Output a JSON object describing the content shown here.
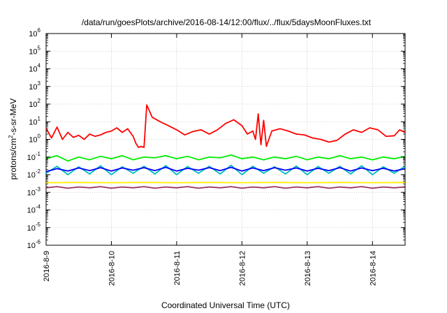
{
  "chart_data": {
    "type": "line",
    "title": "/data/run/goesPlots/archive/2016-08-14/12:00/flux/../flux/5daysMoonFluxes.txt",
    "xlabel": "Coordinated Universal Time (UTC)",
    "ylabel": {
      "base": "protons/cm",
      "sup": "2",
      "rest": "-s-sr-MeV"
    },
    "xscale": "date",
    "xlim": [
      "2016-08-09 00:00",
      "2016-08-14 12:00"
    ],
    "x_ticks": [
      "2016-8-9",
      "2016-8-10",
      "2016-8-11",
      "2016-8-12",
      "2016-8-13",
      "2016-8-14"
    ],
    "yscale": "log",
    "ylim": [
      1e-06,
      1000000.0
    ],
    "y_ticks": [
      {
        "base": "10",
        "exp": "6"
      },
      {
        "base": "10",
        "exp": "5"
      },
      {
        "base": "10",
        "exp": "4"
      },
      {
        "base": "10",
        "exp": "3"
      },
      {
        "base": "10",
        "exp": "2"
      },
      {
        "base": "10",
        "exp": "1"
      },
      {
        "base": "10",
        "exp": "0"
      },
      {
        "base": "10",
        "exp": "-1"
      },
      {
        "base": "10",
        "exp": "-2"
      },
      {
        "base": "10",
        "exp": "-3"
      },
      {
        "base": "10",
        "exp": "-4"
      },
      {
        "base": "10",
        "exp": "-5"
      },
      {
        "base": "10",
        "exp": "-6"
      }
    ],
    "grid": true,
    "series": [
      {
        "color": "#ff0000",
        "values": [
          [
            "2016-08-09 00:00",
            4.2
          ],
          [
            "2016-08-09 02:00",
            1.2
          ],
          [
            "2016-08-09 04:00",
            5.0
          ],
          [
            "2016-08-09 06:00",
            1.0
          ],
          [
            "2016-08-09 08:00",
            2.5
          ],
          [
            "2016-08-09 10:00",
            1.3
          ],
          [
            "2016-08-09 12:00",
            1.7
          ],
          [
            "2016-08-09 14:00",
            1.0
          ],
          [
            "2016-08-09 16:00",
            2.0
          ],
          [
            "2016-08-09 18:00",
            1.5
          ],
          [
            "2016-08-09 20:00",
            1.8
          ],
          [
            "2016-08-09 22:00",
            2.5
          ],
          [
            "2016-08-10 00:00",
            3.0
          ],
          [
            "2016-08-10 02:00",
            4.5
          ],
          [
            "2016-08-10 04:00",
            2.5
          ],
          [
            "2016-08-10 06:00",
            4.0
          ],
          [
            "2016-08-10 08:00",
            1.5
          ],
          [
            "2016-08-10 09:00",
            0.6
          ],
          [
            "2016-08-10 10:00",
            0.35
          ],
          [
            "2016-08-10 11:00",
            0.4
          ],
          [
            "2016-08-10 12:00",
            0.35
          ],
          [
            "2016-08-10 13:00",
            90
          ],
          [
            "2016-08-10 14:00",
            40
          ],
          [
            "2016-08-10 15:00",
            18
          ],
          [
            "2016-08-10 18:00",
            10
          ],
          [
            "2016-08-10 21:00",
            6
          ],
          [
            "2016-08-11 00:00",
            3.5
          ],
          [
            "2016-08-11 03:00",
            1.8
          ],
          [
            "2016-08-11 06:00",
            2.8
          ],
          [
            "2016-08-11 09:00",
            3.5
          ],
          [
            "2016-08-11 12:00",
            2.0
          ],
          [
            "2016-08-11 15:00",
            3.5
          ],
          [
            "2016-08-11 18:00",
            8.0
          ],
          [
            "2016-08-11 21:00",
            13
          ],
          [
            "2016-08-12 00:00",
            6.0
          ],
          [
            "2016-08-12 02:00",
            2.0
          ],
          [
            "2016-08-12 04:00",
            3.0
          ],
          [
            "2016-08-12 05:00",
            1.0
          ],
          [
            "2016-08-12 06:00",
            28
          ],
          [
            "2016-08-12 07:00",
            0.5
          ],
          [
            "2016-08-12 08:00",
            12
          ],
          [
            "2016-08-12 09:00",
            0.4
          ],
          [
            "2016-08-12 11:00",
            3.0
          ],
          [
            "2016-08-12 14:00",
            4.0
          ],
          [
            "2016-08-12 17:00",
            3.0
          ],
          [
            "2016-08-12 20:00",
            2.0
          ],
          [
            "2016-08-12 23:00",
            1.8
          ],
          [
            "2016-08-13 02:00",
            1.2
          ],
          [
            "2016-08-13 05:00",
            1.0
          ],
          [
            "2016-08-13 08:00",
            0.7
          ],
          [
            "2016-08-13 11:00",
            0.9
          ],
          [
            "2016-08-13 14:00",
            2.0
          ],
          [
            "2016-08-13 17:00",
            3.5
          ],
          [
            "2016-08-13 20:00",
            2.5
          ],
          [
            "2016-08-13 23:00",
            4.5
          ],
          [
            "2016-08-14 02:00",
            3.5
          ],
          [
            "2016-08-14 05:00",
            1.5
          ],
          [
            "2016-08-14 08:00",
            1.6
          ],
          [
            "2016-08-14 10:00",
            3.5
          ],
          [
            "2016-08-14 12:00",
            2.5
          ]
        ]
      },
      {
        "color": "#00ee00",
        "values": [
          [
            "2016-08-09 00:00",
            0.08
          ],
          [
            "2016-08-09 04:00",
            0.12
          ],
          [
            "2016-08-09 08:00",
            0.06
          ],
          [
            "2016-08-09 12:00",
            0.1
          ],
          [
            "2016-08-09 16:00",
            0.07
          ],
          [
            "2016-08-09 20:00",
            0.11
          ],
          [
            "2016-08-10 00:00",
            0.08
          ],
          [
            "2016-08-10 04:00",
            0.12
          ],
          [
            "2016-08-10 08:00",
            0.07
          ],
          [
            "2016-08-10 12:00",
            0.1
          ],
          [
            "2016-08-10 16:00",
            0.09
          ],
          [
            "2016-08-10 20:00",
            0.12
          ],
          [
            "2016-08-11 00:00",
            0.08
          ],
          [
            "2016-08-11 04:00",
            0.11
          ],
          [
            "2016-08-11 08:00",
            0.07
          ],
          [
            "2016-08-11 12:00",
            0.1
          ],
          [
            "2016-08-11 16:00",
            0.09
          ],
          [
            "2016-08-11 20:00",
            0.13
          ],
          [
            "2016-08-12 00:00",
            0.08
          ],
          [
            "2016-08-12 04:00",
            0.1
          ],
          [
            "2016-08-12 08:00",
            0.07
          ],
          [
            "2016-08-12 12:00",
            0.1
          ],
          [
            "2016-08-12 16:00",
            0.08
          ],
          [
            "2016-08-12 20:00",
            0.11
          ],
          [
            "2016-08-13 00:00",
            0.07
          ],
          [
            "2016-08-13 04:00",
            0.1
          ],
          [
            "2016-08-13 08:00",
            0.08
          ],
          [
            "2016-08-13 12:00",
            0.12
          ],
          [
            "2016-08-13 16:00",
            0.08
          ],
          [
            "2016-08-13 20:00",
            0.1
          ],
          [
            "2016-08-14 00:00",
            0.07
          ],
          [
            "2016-08-14 04:00",
            0.1
          ],
          [
            "2016-08-14 08:00",
            0.08
          ],
          [
            "2016-08-14 12:00",
            0.11
          ]
        ]
      },
      {
        "color": "#00bbbb",
        "values": [
          [
            "2016-08-09 00:00",
            0.012
          ],
          [
            "2016-08-09 04:00",
            0.03
          ],
          [
            "2016-08-09 08:00",
            0.01
          ],
          [
            "2016-08-09 12:00",
            0.028
          ],
          [
            "2016-08-09 16:00",
            0.011
          ],
          [
            "2016-08-09 20:00",
            0.032
          ],
          [
            "2016-08-10 00:00",
            0.01
          ],
          [
            "2016-08-10 04:00",
            0.028
          ],
          [
            "2016-08-10 08:00",
            0.012
          ],
          [
            "2016-08-10 12:00",
            0.03
          ],
          [
            "2016-08-10 16:00",
            0.011
          ],
          [
            "2016-08-10 20:00",
            0.033
          ],
          [
            "2016-08-11 00:00",
            0.01
          ],
          [
            "2016-08-11 04:00",
            0.029
          ],
          [
            "2016-08-11 08:00",
            0.012
          ],
          [
            "2016-08-11 12:00",
            0.03
          ],
          [
            "2016-08-11 16:00",
            0.011
          ],
          [
            "2016-08-11 20:00",
            0.034
          ],
          [
            "2016-08-12 00:00",
            0.01
          ],
          [
            "2016-08-12 04:00",
            0.03
          ],
          [
            "2016-08-12 08:00",
            0.012
          ],
          [
            "2016-08-12 12:00",
            0.028
          ],
          [
            "2016-08-12 16:00",
            0.011
          ],
          [
            "2016-08-12 20:00",
            0.031
          ],
          [
            "2016-08-13 00:00",
            0.01
          ],
          [
            "2016-08-13 04:00",
            0.029
          ],
          [
            "2016-08-13 08:00",
            0.012
          ],
          [
            "2016-08-13 12:00",
            0.03
          ],
          [
            "2016-08-13 16:00",
            0.011
          ],
          [
            "2016-08-13 20:00",
            0.032
          ],
          [
            "2016-08-14 00:00",
            0.01
          ],
          [
            "2016-08-14 04:00",
            0.028
          ],
          [
            "2016-08-14 08:00",
            0.012
          ],
          [
            "2016-08-14 12:00",
            0.03
          ]
        ]
      },
      {
        "color": "#0000ff",
        "values": [
          [
            "2016-08-09 00:00",
            0.015
          ],
          [
            "2016-08-09 04:00",
            0.022
          ],
          [
            "2016-08-09 08:00",
            0.016
          ],
          [
            "2016-08-09 12:00",
            0.024
          ],
          [
            "2016-08-09 16:00",
            0.017
          ],
          [
            "2016-08-09 20:00",
            0.025
          ],
          [
            "2016-08-10 00:00",
            0.016
          ],
          [
            "2016-08-10 04:00",
            0.024
          ],
          [
            "2016-08-10 08:00",
            0.018
          ],
          [
            "2016-08-10 12:00",
            0.025
          ],
          [
            "2016-08-10 16:00",
            0.017
          ],
          [
            "2016-08-10 20:00",
            0.026
          ],
          [
            "2016-08-11 00:00",
            0.016
          ],
          [
            "2016-08-11 04:00",
            0.023
          ],
          [
            "2016-08-11 08:00",
            0.018
          ],
          [
            "2016-08-11 12:00",
            0.025
          ],
          [
            "2016-08-11 16:00",
            0.017
          ],
          [
            "2016-08-11 20:00",
            0.026
          ],
          [
            "2016-08-12 00:00",
            0.016
          ],
          [
            "2016-08-12 04:00",
            0.024
          ],
          [
            "2016-08-12 08:00",
            0.017
          ],
          [
            "2016-08-12 12:00",
            0.025
          ],
          [
            "2016-08-12 16:00",
            0.018
          ],
          [
            "2016-08-12 20:00",
            0.024
          ],
          [
            "2016-08-13 00:00",
            0.016
          ],
          [
            "2016-08-13 04:00",
            0.023
          ],
          [
            "2016-08-13 08:00",
            0.017
          ],
          [
            "2016-08-13 12:00",
            0.025
          ],
          [
            "2016-08-13 16:00",
            0.016
          ],
          [
            "2016-08-13 20:00",
            0.024
          ],
          [
            "2016-08-14 00:00",
            0.017
          ],
          [
            "2016-08-14 04:00",
            0.023
          ],
          [
            "2016-08-14 08:00",
            0.016
          ],
          [
            "2016-08-14 12:00",
            0.022
          ]
        ]
      },
      {
        "color": "#ffee00",
        "values": [
          [
            "2016-08-09 00:00",
            0.0035
          ],
          [
            "2016-08-09 12:00",
            0.0036
          ],
          [
            "2016-08-10 00:00",
            0.0035
          ],
          [
            "2016-08-10 12:00",
            0.0036
          ],
          [
            "2016-08-11 00:00",
            0.0035
          ],
          [
            "2016-08-11 12:00",
            0.0036
          ],
          [
            "2016-08-12 00:00",
            0.0035
          ],
          [
            "2016-08-12 12:00",
            0.0036
          ],
          [
            "2016-08-13 00:00",
            0.0035
          ],
          [
            "2016-08-13 12:00",
            0.0036
          ],
          [
            "2016-08-14 00:00",
            0.0035
          ],
          [
            "2016-08-14 12:00",
            0.0036
          ]
        ]
      },
      {
        "color": "#993366",
        "values": [
          [
            "2016-08-09 00:00",
            0.0018
          ],
          [
            "2016-08-09 04:00",
            0.0021
          ],
          [
            "2016-08-09 08:00",
            0.0017
          ],
          [
            "2016-08-09 12:00",
            0.002
          ],
          [
            "2016-08-09 16:00",
            0.0018
          ],
          [
            "2016-08-09 20:00",
            0.0021
          ],
          [
            "2016-08-10 00:00",
            0.0017
          ],
          [
            "2016-08-10 04:00",
            0.002
          ],
          [
            "2016-08-10 08:00",
            0.0018
          ],
          [
            "2016-08-10 12:00",
            0.0021
          ],
          [
            "2016-08-10 16:00",
            0.0017
          ],
          [
            "2016-08-10 20:00",
            0.002
          ],
          [
            "2016-08-11 00:00",
            0.0018
          ],
          [
            "2016-08-11 04:00",
            0.0021
          ],
          [
            "2016-08-11 08:00",
            0.0017
          ],
          [
            "2016-08-11 12:00",
            0.002
          ],
          [
            "2016-08-11 16:00",
            0.0018
          ],
          [
            "2016-08-11 20:00",
            0.0021
          ],
          [
            "2016-08-12 00:00",
            0.0017
          ],
          [
            "2016-08-12 04:00",
            0.002
          ],
          [
            "2016-08-12 08:00",
            0.0018
          ],
          [
            "2016-08-12 12:00",
            0.0021
          ],
          [
            "2016-08-12 16:00",
            0.0017
          ],
          [
            "2016-08-12 20:00",
            0.002
          ],
          [
            "2016-08-13 00:00",
            0.0018
          ],
          [
            "2016-08-13 04:00",
            0.0021
          ],
          [
            "2016-08-13 08:00",
            0.0017
          ],
          [
            "2016-08-13 12:00",
            0.002
          ],
          [
            "2016-08-13 16:00",
            0.0018
          ],
          [
            "2016-08-13 20:00",
            0.0021
          ],
          [
            "2016-08-14 00:00",
            0.0017
          ],
          [
            "2016-08-14 04:00",
            0.002
          ],
          [
            "2016-08-14 08:00",
            0.0018
          ],
          [
            "2016-08-14 12:00",
            0.002
          ]
        ]
      }
    ]
  }
}
